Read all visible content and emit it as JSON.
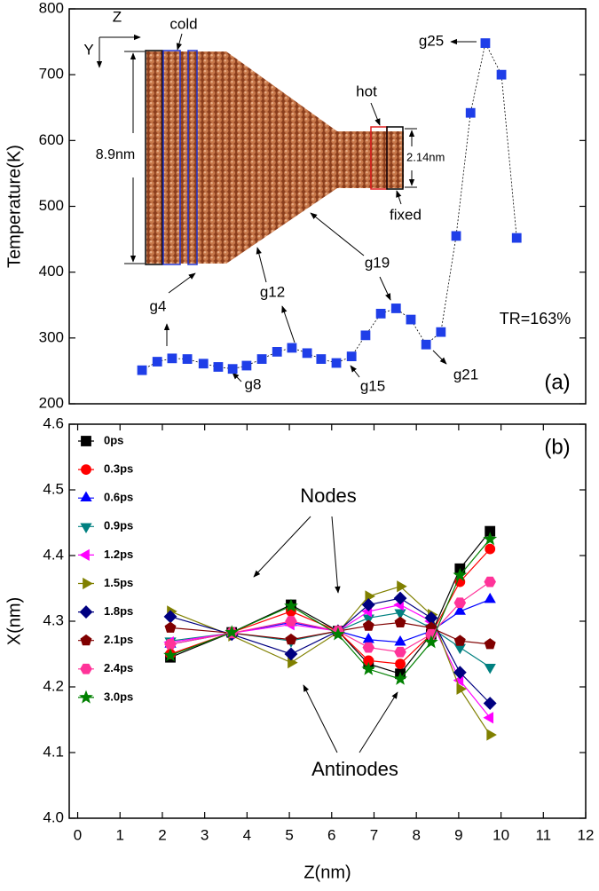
{
  "chart_data": [
    {
      "type": "line",
      "ylabel": "Temperature(K)",
      "color": "#1f3ee8",
      "marker": "square",
      "x": [
        1.52,
        1.88,
        2.23,
        2.59,
        2.97,
        3.32,
        3.66,
        3.99,
        4.35,
        4.71,
        5.06,
        5.42,
        5.75,
        6.11,
        6.47,
        6.8,
        7.16,
        7.52,
        7.87,
        8.23,
        8.58,
        8.94,
        9.28,
        9.63,
        10.01,
        10.37
      ],
      "values": [
        251,
        264,
        269,
        268,
        261,
        256,
        253,
        258,
        268,
        279,
        285,
        277,
        268,
        262,
        272,
        304,
        337,
        345,
        328,
        290,
        309,
        455,
        642,
        748,
        700,
        452
      ],
      "xlim": [
        -0.2,
        12
      ],
      "ylim": [
        200,
        800
      ],
      "yticks": [
        200,
        300,
        400,
        500,
        600,
        700,
        800
      ],
      "annotations": [
        "cold",
        "hot",
        "fixed",
        "8.9nm",
        "2.14nm",
        "Z",
        "Y",
        "g4",
        "g8",
        "g12",
        "g15",
        "g19",
        "g21",
        "g25",
        "TR=163%",
        "(a)"
      ]
    },
    {
      "type": "line",
      "xlabel": "Z(nm)",
      "ylabel": "X(nm)",
      "x": [
        2.19,
        3.64,
        5.04,
        6.15,
        6.87,
        7.62,
        8.35,
        9.03,
        9.74
      ],
      "series": [
        {
          "name": "0ps",
          "color": "#000000",
          "marker": "square",
          "values": [
            4.245,
            4.283,
            4.325,
            4.285,
            4.235,
            4.22,
            4.28,
            4.38,
            4.437
          ]
        },
        {
          "name": "0.3ps",
          "color": "#ff0000",
          "marker": "circle",
          "values": [
            4.25,
            4.283,
            4.315,
            4.285,
            4.24,
            4.235,
            4.28,
            4.36,
            4.41
          ]
        },
        {
          "name": "0.6ps",
          "color": "#0000ff",
          "marker": "triangle-up",
          "values": [
            4.265,
            4.282,
            4.298,
            4.285,
            4.272,
            4.268,
            4.285,
            4.315,
            4.333
          ]
        },
        {
          "name": "0.9ps",
          "color": "#008080",
          "marker": "triangle-down",
          "values": [
            4.27,
            4.282,
            4.27,
            4.285,
            4.305,
            4.313,
            4.29,
            4.26,
            4.23
          ]
        },
        {
          "name": "1.2ps",
          "color": "#ff00ff",
          "marker": "triangle-left",
          "values": [
            4.268,
            4.282,
            4.295,
            4.285,
            4.315,
            4.325,
            4.3,
            4.21,
            4.153
          ]
        },
        {
          "name": "1.5ps",
          "color": "#808000",
          "marker": "triangle-right",
          "values": [
            4.315,
            4.278,
            4.237,
            4.283,
            4.338,
            4.353,
            4.31,
            4.197,
            4.127
          ]
        },
        {
          "name": "1.8ps",
          "color": "#000080",
          "marker": "diamond",
          "values": [
            4.307,
            4.28,
            4.25,
            4.285,
            4.325,
            4.335,
            4.305,
            4.222,
            4.175
          ]
        },
        {
          "name": "2.1ps",
          "color": "#800000",
          "marker": "pentagon",
          "values": [
            4.29,
            4.282,
            4.272,
            4.285,
            4.293,
            4.298,
            4.29,
            4.27,
            4.265
          ]
        },
        {
          "name": "2.4ps",
          "color": "#ff3399",
          "marker": "hexagon",
          "values": [
            4.265,
            4.282,
            4.3,
            4.285,
            4.26,
            4.253,
            4.28,
            4.328,
            4.36
          ]
        },
        {
          "name": "3.0ps",
          "color": "#008000",
          "marker": "star",
          "values": [
            4.248,
            4.283,
            4.323,
            4.28,
            4.227,
            4.212,
            4.268,
            4.37,
            4.425
          ]
        }
      ],
      "xlim": [
        -0.2,
        12
      ],
      "ylim": [
        4.0,
        4.6
      ],
      "xticks": [
        0,
        1,
        2,
        3,
        4,
        5,
        6,
        7,
        8,
        9,
        10,
        11,
        12
      ],
      "yticks": [
        {
          "value": 4.0,
          "label": "4.0"
        },
        4.1,
        4.2,
        4.3,
        4.4,
        4.5,
        4.6
      ],
      "annotations": [
        "(b)",
        "Nodes",
        "Antinodes"
      ]
    }
  ]
}
